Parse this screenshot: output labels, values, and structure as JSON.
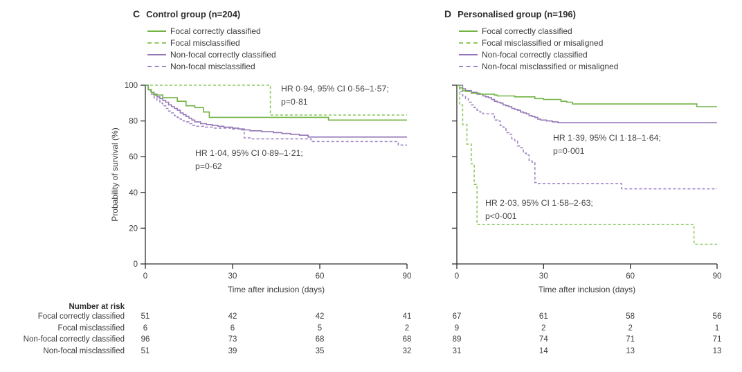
{
  "colors": {
    "green_solid": "#72b344",
    "green_dashed": "#8dc962",
    "purple_solid": "#9477b7",
    "purple_dashed": "#9f84c6",
    "axis": "#2f2e2d",
    "text": "#3c3b3a"
  },
  "panels": [
    {
      "letter": "C"
    },
    {
      "letter": "D"
    }
  ],
  "chart_data": [
    {
      "type": "line",
      "subtype": "kaplan-meier-step",
      "title": "Control group (n=204)",
      "xlabel": "Time after inclusion (days)",
      "ylabel": "Probability of survival (%)",
      "xlim": [
        0,
        90
      ],
      "ylim": [
        0,
        100
      ],
      "xticks": [
        0,
        30,
        60,
        90
      ],
      "yticks": [
        0,
        20,
        40,
        60,
        80,
        100
      ],
      "grid": false,
      "legend_position": "top-left-above-plot",
      "series": [
        {
          "name": "Focal correctly classified",
          "color": "green_solid",
          "dash": false,
          "points": [
            [
              0,
              100
            ],
            [
              1,
              97.5
            ],
            [
              2,
              96
            ],
            [
              3,
              94.5
            ],
            [
              6,
              93
            ],
            [
              11,
              91
            ],
            [
              14,
              88.5
            ],
            [
              17,
              87.5
            ],
            [
              20,
              85
            ],
            [
              22,
              82
            ],
            [
              63,
              80.5
            ],
            [
              90,
              80.5
            ]
          ]
        },
        {
          "name": "Focal misclassified",
          "color": "green_dashed",
          "dash": true,
          "points": [
            [
              0,
              100
            ],
            [
              43,
              83.3
            ],
            [
              90,
              83.3
            ]
          ]
        },
        {
          "name": "Non-focal correctly classified",
          "color": "purple_solid",
          "dash": false,
          "points": [
            [
              0,
              100
            ],
            [
              1,
              97.5
            ],
            [
              2,
              96
            ],
            [
              3,
              95
            ],
            [
              4,
              93.5
            ],
            [
              5,
              92.5
            ],
            [
              6,
              91.5
            ],
            [
              7,
              90.5
            ],
            [
              8,
              89
            ],
            [
              9,
              88
            ],
            [
              10,
              87
            ],
            [
              11,
              86
            ],
            [
              12,
              84.5
            ],
            [
              13,
              83.5
            ],
            [
              14,
              82.5
            ],
            [
              15,
              81.5
            ],
            [
              16,
              80.5
            ],
            [
              17,
              79.5
            ],
            [
              19,
              78.5
            ],
            [
              21,
              78
            ],
            [
              23,
              77.5
            ],
            [
              25,
              77
            ],
            [
              27,
              76.5
            ],
            [
              30,
              76
            ],
            [
              32,
              75.5
            ],
            [
              34,
              75
            ],
            [
              36,
              74.5
            ],
            [
              40,
              74
            ],
            [
              44,
              73.5
            ],
            [
              47,
              73
            ],
            [
              50,
              72.5
            ],
            [
              53,
              72
            ],
            [
              56,
              71
            ],
            [
              90,
              71
            ]
          ]
        },
        {
          "name": "Non-focal misclassified",
          "color": "purple_dashed",
          "dash": true,
          "points": [
            [
              0,
              100
            ],
            [
              1,
              97
            ],
            [
              2,
              95
            ],
            [
              3,
              93
            ],
            [
              4,
              91.5
            ],
            [
              5,
              90
            ],
            [
              6,
              88.5
            ],
            [
              7,
              87
            ],
            [
              8,
              85.5
            ],
            [
              9,
              84.5
            ],
            [
              10,
              83
            ],
            [
              11,
              82
            ],
            [
              12,
              81
            ],
            [
              13,
              80
            ],
            [
              14,
              79.5
            ],
            [
              15,
              78.5
            ],
            [
              16,
              77.5
            ],
            [
              17,
              77
            ],
            [
              20,
              76.5
            ],
            [
              23,
              76
            ],
            [
              30,
              75.5
            ],
            [
              33,
              75
            ],
            [
              34,
              70.5
            ],
            [
              36,
              70
            ],
            [
              57,
              68.5
            ],
            [
              87,
              66.5
            ],
            [
              90,
              66.5
            ]
          ]
        }
      ],
      "annotations": [
        {
          "line1": "HR 0·94, 95% CI 0·56–1·57;",
          "line2": "p=0·81"
        },
        {
          "line1": "HR 1·04, 95% CI 0·89–1·21;",
          "line2": "p=0·62"
        }
      ]
    },
    {
      "type": "line",
      "subtype": "kaplan-meier-step",
      "title": "Personalised group (n=196)",
      "xlabel": "Time after inclusion (days)",
      "ylabel": "",
      "xlim": [
        0,
        90
      ],
      "ylim": [
        0,
        100
      ],
      "xticks": [
        0,
        30,
        60,
        90
      ],
      "yticks": [
        0,
        20,
        40,
        60,
        80,
        100
      ],
      "grid": false,
      "legend_position": "top-left-above-plot",
      "series": [
        {
          "name": "Focal correctly classified",
          "color": "green_solid",
          "dash": false,
          "points": [
            [
              0,
              100
            ],
            [
              1,
              98.5
            ],
            [
              2,
              97
            ],
            [
              3,
              96.5
            ],
            [
              5,
              95.5
            ],
            [
              8,
              95
            ],
            [
              13,
              94.5
            ],
            [
              14,
              94
            ],
            [
              20,
              93.5
            ],
            [
              27,
              92.5
            ],
            [
              30,
              92
            ],
            [
              36,
              91
            ],
            [
              38,
              90.5
            ],
            [
              40,
              89.5
            ],
            [
              83,
              88
            ],
            [
              90,
              88
            ]
          ]
        },
        {
          "name": "Focal misclassified or misaligned",
          "color": "green_dashed",
          "dash": true,
          "points": [
            [
              0,
              100
            ],
            [
              1,
              89
            ],
            [
              2,
              78
            ],
            [
              3.5,
              67
            ],
            [
              5,
              56
            ],
            [
              6,
              44.5
            ],
            [
              7,
              22
            ],
            [
              82,
              11
            ],
            [
              90,
              11
            ]
          ]
        },
        {
          "name": "Non-focal correctly classified",
          "color": "purple_solid",
          "dash": false,
          "points": [
            [
              0,
              100
            ],
            [
              2,
              98
            ],
            [
              3,
              97
            ],
            [
              5,
              96
            ],
            [
              7,
              95
            ],
            [
              9,
              94
            ],
            [
              10,
              93.5
            ],
            [
              11,
              93
            ],
            [
              12,
              92
            ],
            [
              13,
              91
            ],
            [
              14,
              90.5
            ],
            [
              15,
              90
            ],
            [
              16,
              89
            ],
            [
              17,
              88.5
            ],
            [
              18,
              88
            ],
            [
              19,
              87
            ],
            [
              20,
              86.5
            ],
            [
              21,
              86
            ],
            [
              22,
              85
            ],
            [
              23,
              84.5
            ],
            [
              24,
              84
            ],
            [
              25,
              83
            ],
            [
              26,
              82.5
            ],
            [
              27,
              82
            ],
            [
              28,
              81
            ],
            [
              29,
              80.5
            ],
            [
              31,
              80
            ],
            [
              33,
              79.5
            ],
            [
              35,
              79
            ],
            [
              90,
              79
            ]
          ]
        },
        {
          "name": "Non-focal misclassified or misaligned",
          "color": "purple_dashed",
          "dash": true,
          "points": [
            [
              0,
              100
            ],
            [
              1,
              96.5
            ],
            [
              2,
              94
            ],
            [
              3,
              92.5
            ],
            [
              4,
              90.5
            ],
            [
              5,
              89
            ],
            [
              6,
              87.5
            ],
            [
              7,
              86
            ],
            [
              8,
              85
            ],
            [
              9,
              84
            ],
            [
              12,
              84
            ],
            [
              13,
              80.5
            ],
            [
              14,
              80
            ],
            [
              15,
              77.5
            ],
            [
              16,
              76.5
            ],
            [
              17,
              73.5
            ],
            [
              18,
              72.5
            ],
            [
              19,
              70
            ],
            [
              20,
              69
            ],
            [
              21,
              66
            ],
            [
              22,
              65
            ],
            [
              23,
              62
            ],
            [
              24,
              61
            ],
            [
              25,
              58
            ],
            [
              26,
              57
            ],
            [
              27,
              45.5
            ],
            [
              28,
              45
            ],
            [
              57,
              42
            ],
            [
              90,
              42
            ]
          ]
        }
      ],
      "annotations": [
        {
          "line1": "HR 1·39, 95% CI 1·18–1·64;",
          "line2": "p=0·001"
        },
        {
          "line1": "HR 2·03, 95% CI 1·58–2·63;",
          "line2": "p<0·001"
        }
      ]
    }
  ],
  "risk_table": {
    "header": "Number at risk",
    "timepoints": [
      0,
      30,
      60,
      90
    ],
    "rows": [
      {
        "label": "Focal correctly classified",
        "control": [
          51,
          42,
          42,
          41
        ],
        "personalised": [
          67,
          61,
          58,
          56
        ]
      },
      {
        "label": "Focal misclassified",
        "control": [
          6,
          6,
          5,
          2
        ],
        "personalised": [
          9,
          2,
          2,
          1
        ]
      },
      {
        "label": "Non-focal correctly classified",
        "control": [
          96,
          73,
          68,
          68
        ],
        "personalised": [
          89,
          74,
          71,
          71
        ]
      },
      {
        "label": "Non-focal misclassified",
        "control": [
          51,
          39,
          35,
          32
        ],
        "personalised": [
          31,
          14,
          13,
          13
        ]
      }
    ]
  }
}
